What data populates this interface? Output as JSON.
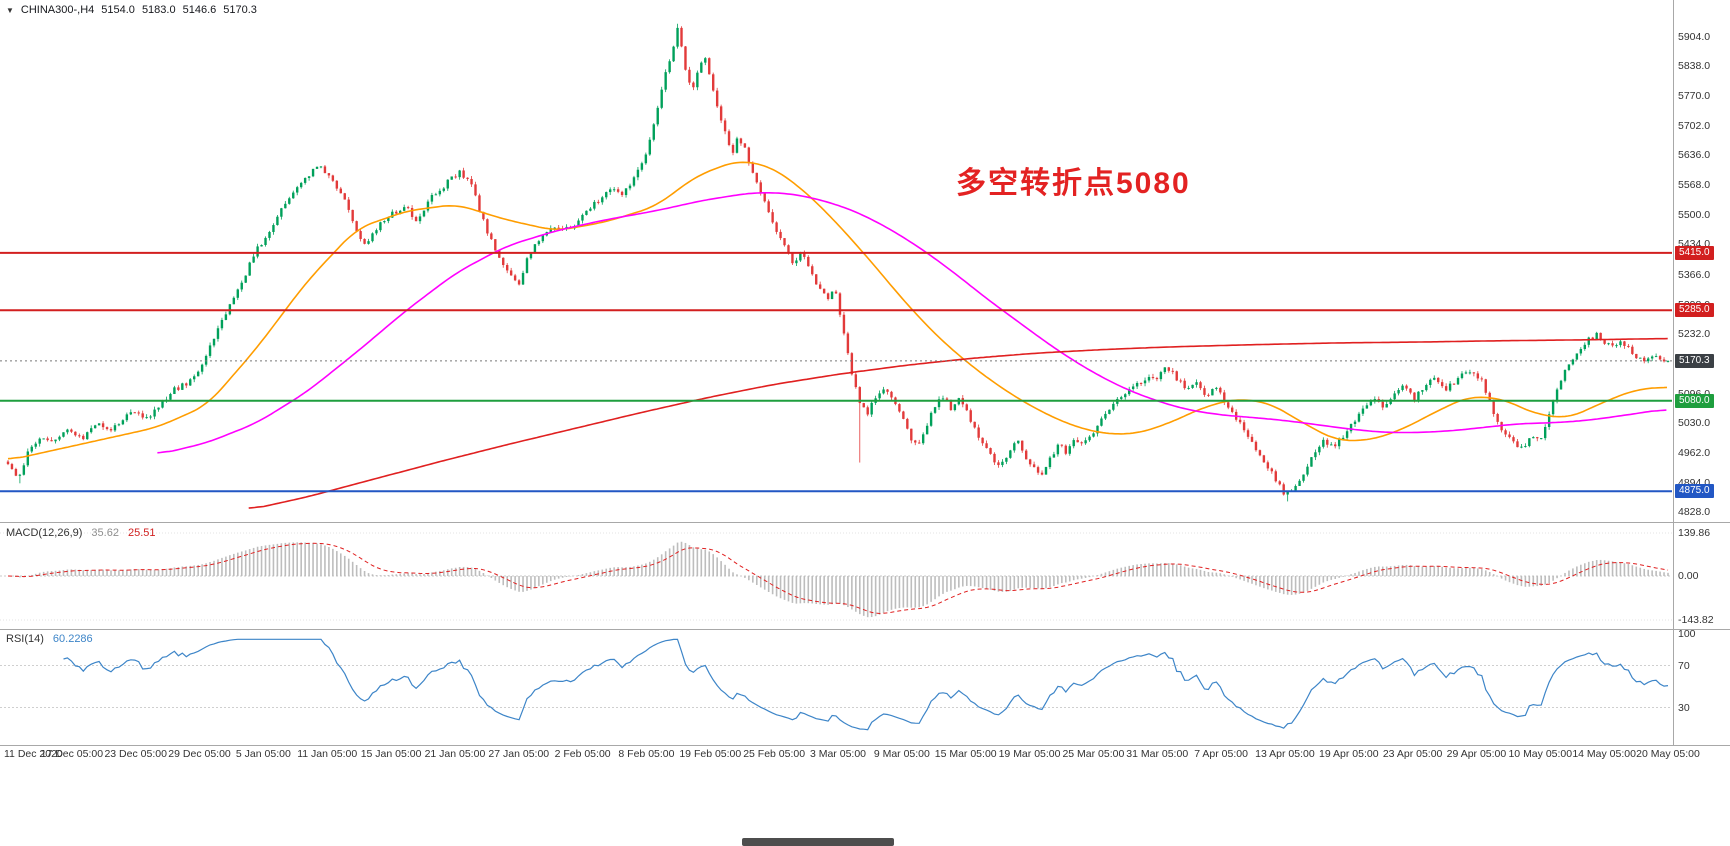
{
  "header": {
    "collapse_icon_glyph": "▼",
    "symbol_timeframe": "CHINA300-,H4",
    "open": "5154.0",
    "high": "5183.0",
    "low": "5146.6",
    "close": "5170.3"
  },
  "annotation": {
    "text": "多空转折点5080",
    "color": "#e32222"
  },
  "chart_data": {
    "type": "candlestick",
    "title": "CHINA300-,H4",
    "symbol": "CHINA300-",
    "timeframe": "H4",
    "y_axis": {
      "side": "right",
      "min": 4828,
      "max": 5904,
      "ticks": [
        "5904.0",
        "5838.0",
        "5770.0",
        "5702.0",
        "5636.0",
        "5568.0",
        "5500.0",
        "5434.0",
        "5366.0",
        "5298.0",
        "5232.0",
        "5164.0",
        "5096.0",
        "5030.0",
        "4962.0",
        "4894.0",
        "4828.0"
      ]
    },
    "x_axis": {
      "ticks": [
        "11 Dec 2020",
        "17 Dec 05:00",
        "23 Dec 05:00",
        "29 Dec 05:00",
        "5 Jan 05:00",
        "11 Jan 05:00",
        "15 Jan 05:00",
        "21 Jan 05:00",
        "27 Jan 05:00",
        "2 Feb 05:00",
        "8 Feb 05:00",
        "19 Feb 05:00",
        "25 Feb 05:00",
        "3 Mar 05:00",
        "9 Mar 05:00",
        "15 Mar 05:00",
        "19 Mar 05:00",
        "25 Mar 05:00",
        "31 Mar 05:00",
        "7 Apr 05:00",
        "13 Apr 05:00",
        "19 Apr 05:00",
        "23 Apr 05:00",
        "29 Apr 05:00",
        "10 May 05:00",
        "14 May 05:00",
        "20 May 05:00"
      ]
    },
    "candle_colors": {
      "up": "#00a05a",
      "down": "#e23a3a"
    },
    "price_path": {
      "anchors": [
        [
          0,
          4940
        ],
        [
          0.006,
          4902
        ],
        [
          0.012,
          4960
        ],
        [
          0.02,
          5000
        ],
        [
          0.028,
          4985
        ],
        [
          0.036,
          5012
        ],
        [
          0.044,
          4992
        ],
        [
          0.052,
          5030
        ],
        [
          0.06,
          5012
        ],
        [
          0.068,
          5035
        ],
        [
          0.076,
          5058
        ],
        [
          0.084,
          5042
        ],
        [
          0.092,
          5075
        ],
        [
          0.1,
          5105
        ],
        [
          0.108,
          5120
        ],
        [
          0.115,
          5150
        ],
        [
          0.125,
          5230
        ],
        [
          0.133,
          5290
        ],
        [
          0.141,
          5345
        ],
        [
          0.148,
          5410
        ],
        [
          0.153,
          5440
        ],
        [
          0.158,
          5470
        ],
        [
          0.165,
          5515
        ],
        [
          0.172,
          5555
        ],
        [
          0.18,
          5590
        ],
        [
          0.188,
          5615
        ],
        [
          0.195,
          5580
        ],
        [
          0.202,
          5548
        ],
        [
          0.209,
          5470
        ],
        [
          0.215,
          5435
        ],
        [
          0.223,
          5478
        ],
        [
          0.231,
          5502
        ],
        [
          0.239,
          5522
        ],
        [
          0.247,
          5485
        ],
        [
          0.255,
          5540
        ],
        [
          0.263,
          5568
        ],
        [
          0.272,
          5600
        ],
        [
          0.279,
          5570
        ],
        [
          0.286,
          5490
        ],
        [
          0.293,
          5425
        ],
        [
          0.3,
          5375
        ],
        [
          0.308,
          5348
        ],
        [
          0.314,
          5415
        ],
        [
          0.322,
          5448
        ],
        [
          0.33,
          5478
        ],
        [
          0.338,
          5468
        ],
        [
          0.346,
          5498
        ],
        [
          0.354,
          5528
        ],
        [
          0.362,
          5558
        ],
        [
          0.37,
          5548
        ],
        [
          0.378,
          5585
        ],
        [
          0.385,
          5645
        ],
        [
          0.39,
          5725
        ],
        [
          0.395,
          5805
        ],
        [
          0.4,
          5875
        ],
        [
          0.404,
          5928
        ],
        [
          0.408,
          5830
        ],
        [
          0.412,
          5782
        ],
        [
          0.416,
          5838
        ],
        [
          0.42,
          5858
        ],
        [
          0.424,
          5798
        ],
        [
          0.428,
          5740
        ],
        [
          0.432,
          5690
        ],
        [
          0.436,
          5635
        ],
        [
          0.44,
          5678
        ],
        [
          0.444,
          5648
        ],
        [
          0.448,
          5600
        ],
        [
          0.453,
          5558
        ],
        [
          0.458,
          5512
        ],
        [
          0.463,
          5468
        ],
        [
          0.468,
          5430
        ],
        [
          0.473,
          5392
        ],
        [
          0.478,
          5420
        ],
        [
          0.483,
          5378
        ],
        [
          0.488,
          5340
        ],
        [
          0.493,
          5312
        ],
        [
          0.498,
          5332
        ],
        [
          0.503,
          5248
        ],
        [
          0.508,
          5150
        ],
        [
          0.513,
          5078
        ],
        [
          0.518,
          5052
        ],
        [
          0.523,
          5092
        ],
        [
          0.528,
          5112
        ],
        [
          0.533,
          5082
        ],
        [
          0.538,
          5050
        ],
        [
          0.543,
          5002
        ],
        [
          0.548,
          4972
        ],
        [
          0.553,
          5022
        ],
        [
          0.558,
          5062
        ],
        [
          0.563,
          5092
        ],
        [
          0.568,
          5062
        ],
        [
          0.573,
          5082
        ],
        [
          0.578,
          5052
        ],
        [
          0.583,
          5012
        ],
        [
          0.588,
          4982
        ],
        [
          0.593,
          4952
        ],
        [
          0.598,
          4930
        ],
        [
          0.603,
          4962
        ],
        [
          0.608,
          4992
        ],
        [
          0.613,
          4952
        ],
        [
          0.618,
          4930
        ],
        [
          0.623,
          4908
        ],
        [
          0.628,
          4952
        ],
        [
          0.633,
          4982
        ],
        [
          0.638,
          4962
        ],
        [
          0.643,
          4992
        ],
        [
          0.648,
          4978
        ],
        [
          0.654,
          5012
        ],
        [
          0.66,
          5042
        ],
        [
          0.666,
          5072
        ],
        [
          0.672,
          5092
        ],
        [
          0.678,
          5112
        ],
        [
          0.685,
          5128
        ],
        [
          0.692,
          5132
        ],
        [
          0.698,
          5158
        ],
        [
          0.704,
          5132
        ],
        [
          0.71,
          5102
        ],
        [
          0.716,
          5122
        ],
        [
          0.722,
          5092
        ],
        [
          0.728,
          5112
        ],
        [
          0.734,
          5072
        ],
        [
          0.74,
          5042
        ],
        [
          0.746,
          5002
        ],
        [
          0.752,
          4972
        ],
        [
          0.758,
          4932
        ],
        [
          0.764,
          4902
        ],
        [
          0.769,
          4866
        ],
        [
          0.775,
          4885
        ],
        [
          0.781,
          4922
        ],
        [
          0.787,
          4962
        ],
        [
          0.793,
          4992
        ],
        [
          0.799,
          4972
        ],
        [
          0.805,
          5002
        ],
        [
          0.811,
          5032
        ],
        [
          0.817,
          5062
        ],
        [
          0.823,
          5082
        ],
        [
          0.829,
          5062
        ],
        [
          0.835,
          5092
        ],
        [
          0.841,
          5112
        ],
        [
          0.847,
          5082
        ],
        [
          0.853,
          5112
        ],
        [
          0.859,
          5132
        ],
        [
          0.865,
          5102
        ],
        [
          0.871,
          5122
        ],
        [
          0.877,
          5142
        ],
        [
          0.882,
          5150
        ],
        [
          0.888,
          5122
        ],
        [
          0.894,
          5062
        ],
        [
          0.9,
          5012
        ],
        [
          0.906,
          4988
        ],
        [
          0.912,
          4970
        ],
        [
          0.918,
          5000
        ],
        [
          0.923,
          4992
        ],
        [
          0.928,
          5042
        ],
        [
          0.933,
          5102
        ],
        [
          0.938,
          5152
        ],
        [
          0.944,
          5182
        ],
        [
          0.95,
          5212
        ],
        [
          0.957,
          5228
        ],
        [
          0.965,
          5202
        ],
        [
          0.972,
          5212
        ],
        [
          0.978,
          5192
        ],
        [
          0.985,
          5168
        ],
        [
          0.992,
          5182
        ],
        [
          1,
          5170
        ]
      ],
      "extra_wicks": [
        {
          "t": 0.006,
          "low": 4893
        },
        {
          "t": 0.404,
          "high": 5934
        },
        {
          "t": 0.513,
          "low": 4940
        },
        {
          "t": 0.772,
          "low": 4852
        }
      ]
    },
    "moving_averages": [
      {
        "name": "fast",
        "color": "#ff9d00",
        "anchors": [
          [
            0,
            4945
          ],
          [
            0.03,
            4970
          ],
          [
            0.06,
            4995
          ],
          [
            0.09,
            5020
          ],
          [
            0.12,
            5070
          ],
          [
            0.15,
            5200
          ],
          [
            0.18,
            5350
          ],
          [
            0.21,
            5470
          ],
          [
            0.24,
            5510
          ],
          [
            0.27,
            5525
          ],
          [
            0.3,
            5490
          ],
          [
            0.33,
            5465
          ],
          [
            0.36,
            5485
          ],
          [
            0.39,
            5520
          ],
          [
            0.415,
            5590
          ],
          [
            0.44,
            5625
          ],
          [
            0.46,
            5610
          ],
          [
            0.48,
            5555
          ],
          [
            0.5,
            5480
          ],
          [
            0.52,
            5395
          ],
          [
            0.54,
            5305
          ],
          [
            0.56,
            5225
          ],
          [
            0.58,
            5160
          ],
          [
            0.6,
            5105
          ],
          [
            0.62,
            5060
          ],
          [
            0.64,
            5025
          ],
          [
            0.66,
            5005
          ],
          [
            0.68,
            5005
          ],
          [
            0.7,
            5030
          ],
          [
            0.72,
            5065
          ],
          [
            0.74,
            5085
          ],
          [
            0.76,
            5075
          ],
          [
            0.78,
            5030
          ],
          [
            0.8,
            4990
          ],
          [
            0.82,
            4990
          ],
          [
            0.84,
            5015
          ],
          [
            0.86,
            5055
          ],
          [
            0.88,
            5090
          ],
          [
            0.9,
            5085
          ],
          [
            0.92,
            5050
          ],
          [
            0.94,
            5040
          ],
          [
            0.96,
            5075
          ],
          [
            0.98,
            5105
          ],
          [
            1,
            5112
          ]
        ]
      },
      {
        "name": "medium",
        "color": "#ff00ff",
        "anchors": [
          [
            0.09,
            4958
          ],
          [
            0.12,
            4985
          ],
          [
            0.15,
            5030
          ],
          [
            0.18,
            5100
          ],
          [
            0.21,
            5190
          ],
          [
            0.24,
            5285
          ],
          [
            0.27,
            5370
          ],
          [
            0.3,
            5430
          ],
          [
            0.33,
            5465
          ],
          [
            0.36,
            5490
          ],
          [
            0.39,
            5510
          ],
          [
            0.42,
            5535
          ],
          [
            0.45,
            5552
          ],
          [
            0.47,
            5550
          ],
          [
            0.49,
            5535
          ],
          [
            0.51,
            5510
          ],
          [
            0.53,
            5472
          ],
          [
            0.55,
            5425
          ],
          [
            0.57,
            5370
          ],
          [
            0.59,
            5310
          ],
          [
            0.61,
            5255
          ],
          [
            0.63,
            5200
          ],
          [
            0.65,
            5152
          ],
          [
            0.67,
            5112
          ],
          [
            0.69,
            5082
          ],
          [
            0.71,
            5060
          ],
          [
            0.73,
            5048
          ],
          [
            0.75,
            5042
          ],
          [
            0.77,
            5035
          ],
          [
            0.79,
            5025
          ],
          [
            0.81,
            5015
          ],
          [
            0.83,
            5008
          ],
          [
            0.85,
            5008
          ],
          [
            0.87,
            5012
          ],
          [
            0.89,
            5020
          ],
          [
            0.91,
            5028
          ],
          [
            0.93,
            5030
          ],
          [
            0.95,
            5035
          ],
          [
            0.97,
            5045
          ],
          [
            1,
            5062
          ]
        ]
      },
      {
        "name": "slow",
        "color": "#e02020",
        "anchors": [
          [
            0.145,
            4833
          ],
          [
            0.18,
            4862
          ],
          [
            0.22,
            4902
          ],
          [
            0.26,
            4942
          ],
          [
            0.3,
            4980
          ],
          [
            0.34,
            5016
          ],
          [
            0.38,
            5052
          ],
          [
            0.42,
            5086
          ],
          [
            0.46,
            5116
          ],
          [
            0.5,
            5140
          ],
          [
            0.54,
            5160
          ],
          [
            0.58,
            5176
          ],
          [
            0.62,
            5188
          ],
          [
            0.66,
            5196
          ],
          [
            0.7,
            5202
          ],
          [
            0.75,
            5207
          ],
          [
            0.8,
            5211
          ],
          [
            0.85,
            5213
          ],
          [
            0.9,
            5216
          ],
          [
            0.95,
            5218
          ],
          [
            1,
            5221
          ]
        ]
      }
    ],
    "horizontal_levels": [
      {
        "label": "5415.0",
        "price": 5415.0,
        "color": "#d21f1f"
      },
      {
        "label": "5285.0",
        "price": 5285.0,
        "color": "#d21f1f"
      },
      {
        "label": "5080.0",
        "price": 5080.0,
        "color": "#1e9e3e"
      },
      {
        "label": "4875.0",
        "price": 4875.0,
        "color": "#2257c4"
      }
    ],
    "current_price": {
      "label": "5170.3",
      "price": 5170.3,
      "badge_color": "#3b4045"
    },
    "macd": {
      "label": "MACD(12,26,9)",
      "main_value": "35.62",
      "signal_value": "25.51",
      "histogram_color": "#bdbdbd",
      "signal_color": "#e02020",
      "scale_labels": {
        "max": "139.86",
        "zero": "0.00",
        "min": "-143.82"
      }
    },
    "rsi": {
      "label": "RSI(14)",
      "value": "60.2286",
      "line_color": "#3d85c8",
      "levels": [
        70,
        30
      ],
      "level_labels": [
        "100",
        "70",
        "30"
      ]
    }
  }
}
